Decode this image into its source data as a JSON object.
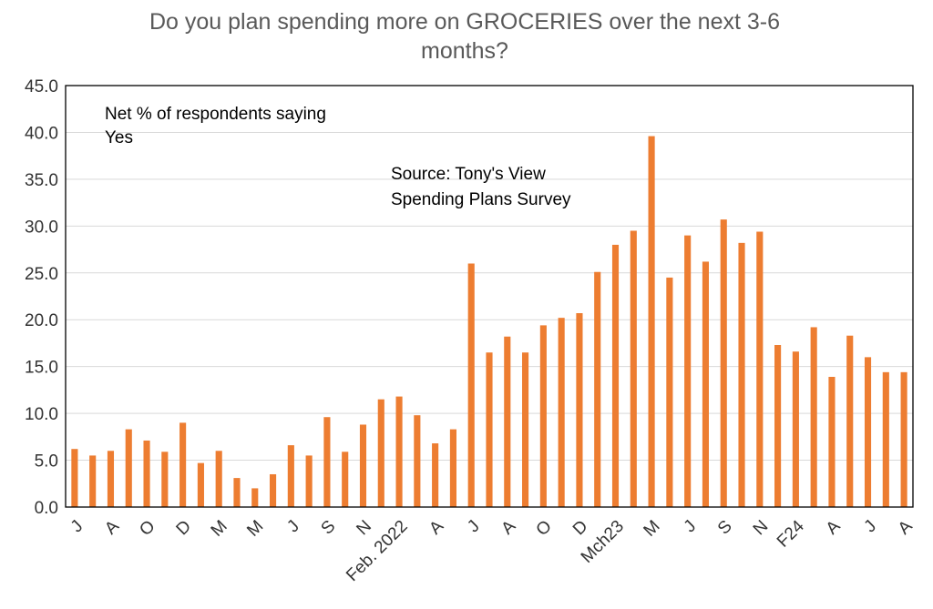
{
  "chart_data": {
    "type": "bar",
    "title_line1": "Do you plan spending more on GROCERIES over the next 3-6",
    "title_line2": "months?",
    "annotation_1_line1": "Net % of respondents saying",
    "annotation_1_line2": "Yes",
    "annotation_2_line1": "Source: Tony's View",
    "annotation_2_line2": "Spending Plans Survey",
    "bar_color": "#ED7D31",
    "ylim": [
      0,
      45
    ],
    "y_ticks": [
      "0.0",
      "5.0",
      "10.0",
      "15.0",
      "20.0",
      "25.0",
      "30.0",
      "35.0",
      "40.0",
      "45.0"
    ],
    "grid": true,
    "x_tick_labels": [
      {
        "label": "J",
        "index": 0
      },
      {
        "label": "A",
        "index": 2
      },
      {
        "label": "O",
        "index": 4
      },
      {
        "label": "D",
        "index": 6
      },
      {
        "label": "M",
        "index": 8
      },
      {
        "label": "M",
        "index": 10
      },
      {
        "label": "J",
        "index": 12
      },
      {
        "label": "S",
        "index": 14
      },
      {
        "label": "N",
        "index": 16
      },
      {
        "label": "Feb. 2022",
        "index": 18
      },
      {
        "label": "A",
        "index": 20
      },
      {
        "label": "J",
        "index": 22
      },
      {
        "label": "A",
        "index": 24
      },
      {
        "label": "O",
        "index": 26
      },
      {
        "label": "D",
        "index": 28
      },
      {
        "label": "Mch23",
        "index": 30
      },
      {
        "label": "M",
        "index": 32
      },
      {
        "label": "J",
        "index": 34
      },
      {
        "label": "S",
        "index": 36
      },
      {
        "label": "N",
        "index": 38
      },
      {
        "label": "F24",
        "index": 40
      },
      {
        "label": "A",
        "index": 42
      },
      {
        "label": "J",
        "index": 44
      },
      {
        "label": "A",
        "index": 46
      }
    ],
    "values": [
      6.2,
      5.5,
      6.0,
      8.3,
      7.1,
      5.9,
      9.0,
      4.7,
      6.0,
      3.1,
      2.0,
      3.5,
      6.6,
      5.5,
      9.6,
      5.9,
      8.8,
      11.5,
      11.8,
      9.8,
      6.8,
      8.3,
      26.0,
      16.5,
      18.2,
      16.5,
      19.4,
      20.2,
      20.7,
      25.1,
      28.0,
      29.5,
      39.6,
      24.5,
      29.0,
      26.2,
      30.7,
      28.2,
      29.4,
      17.3,
      16.6,
      19.2,
      13.9,
      18.3,
      16.0,
      14.4,
      14.4
    ]
  }
}
